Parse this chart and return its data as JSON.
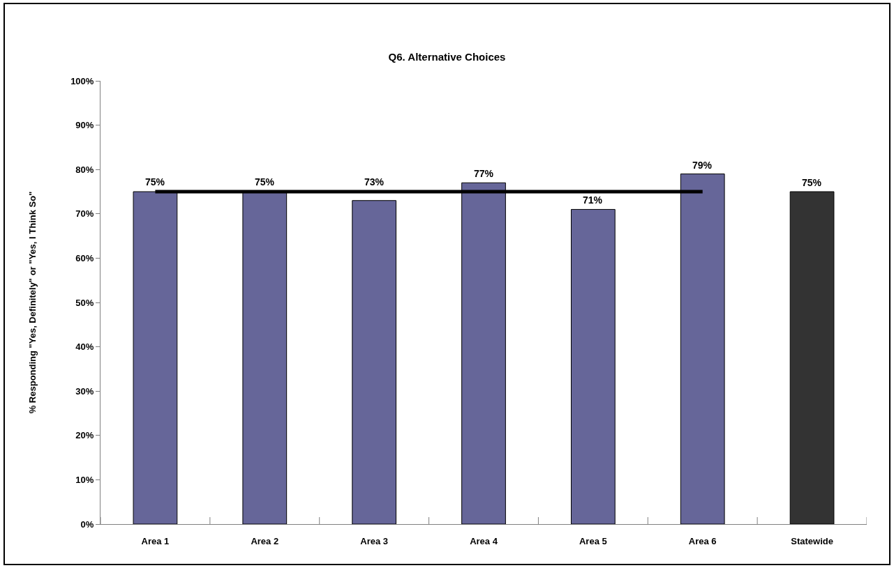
{
  "chart_data": {
    "type": "bar",
    "title": "Q6. Alternative Choices",
    "ylabel": "% Responding \"Yes, Definitely\" or \"Yes, I Think So\"",
    "categories": [
      "Area 1",
      "Area 2",
      "Area 3",
      "Area 4",
      "Area 5",
      "Area 6",
      "Statewide"
    ],
    "series": [
      {
        "colors": [
          "#666699",
          "#666699",
          "#666699",
          "#666699",
          "#666699",
          "#666699",
          "#333333"
        ],
        "values": [
          75,
          75,
          73,
          77,
          71,
          79,
          75
        ],
        "value_labels": [
          "75%",
          "75%",
          "73%",
          "77%",
          "71%",
          "79%",
          "75%"
        ]
      },
      {
        "type": "line",
        "color": "#000000",
        "values": [
          75,
          75,
          75,
          75,
          75,
          75,
          null
        ],
        "line_style": "solid"
      }
    ],
    "ylim": [
      0,
      100
    ],
    "yticks": [
      {
        "value": 0,
        "label": "0%"
      },
      {
        "value": 10,
        "label": "10%"
      },
      {
        "value": 20,
        "label": "20%"
      },
      {
        "value": 30,
        "label": "30%"
      },
      {
        "value": 40,
        "label": "40%"
      },
      {
        "value": 50,
        "label": "50%"
      },
      {
        "value": 60,
        "label": "60%"
      },
      {
        "value": 70,
        "label": "70%"
      },
      {
        "value": 80,
        "label": "80%"
      },
      {
        "value": 90,
        "label": "90%"
      },
      {
        "value": 100,
        "label": "100%"
      }
    ],
    "grid": false
  }
}
